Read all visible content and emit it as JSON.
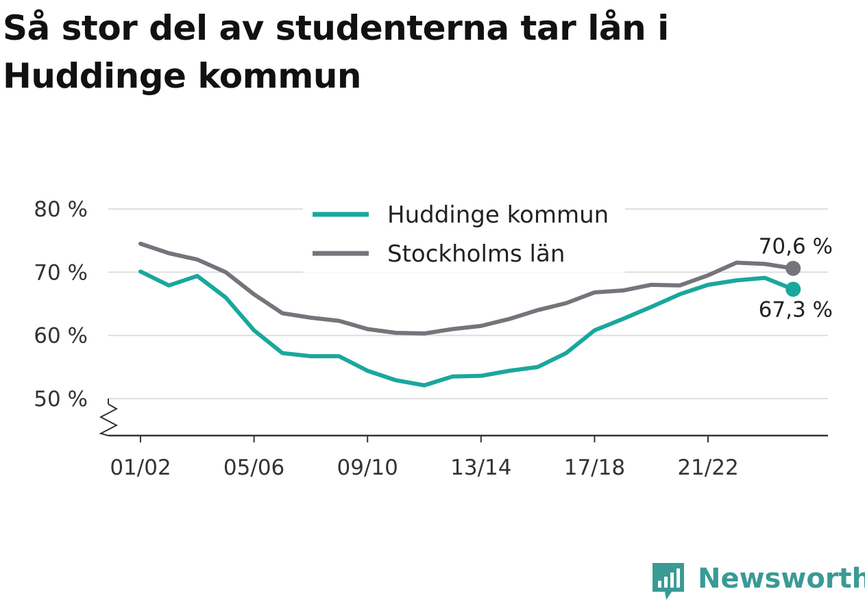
{
  "title": "Så stor del av studenterna tar lån i Huddinge kommun",
  "brand": {
    "name": "Newsworthy",
    "icon": "newsworthy-logo-icon",
    "color": "#3a9a95"
  },
  "chart_data": {
    "type": "line",
    "title": "Så stor del av studenterna tar lån i Huddinge kommun",
    "xlabel": "",
    "ylabel": "",
    "ylim": [
      44.3,
      80
    ],
    "yticks": [
      50,
      60,
      70,
      80
    ],
    "ytick_labels": [
      "50 %",
      "60 %",
      "70 %",
      "80 %"
    ],
    "x": [
      "01/02",
      "02/03",
      "03/04",
      "04/05",
      "05/06",
      "06/07",
      "07/08",
      "08/09",
      "09/10",
      "10/11",
      "11/12",
      "12/13",
      "13/14",
      "14/15",
      "15/16",
      "16/17",
      "17/18",
      "18/19",
      "19/20",
      "20/21",
      "21/22",
      "22/23",
      "23/24",
      "24/25"
    ],
    "xticks": [
      "01/02",
      "05/06",
      "09/10",
      "13/14",
      "17/18",
      "21/22"
    ],
    "grid": true,
    "axis_break": true,
    "legend_position": "top-center",
    "series": [
      {
        "name": "Huddinge kommun",
        "color": "#1aa79d",
        "values": [
          70.1,
          67.9,
          69.4,
          66.0,
          60.8,
          57.2,
          56.7,
          56.7,
          54.4,
          52.9,
          52.1,
          53.5,
          53.6,
          54.4,
          55.0,
          57.2,
          60.8,
          62.6,
          64.5,
          66.5,
          68.0,
          68.7,
          69.1,
          67.3
        ],
        "end_label": "67,3 %"
      },
      {
        "name": "Stockholms län",
        "color": "#75747b",
        "values": [
          74.5,
          73.0,
          72.0,
          70.0,
          66.5,
          63.5,
          62.8,
          62.3,
          61.0,
          60.4,
          60.3,
          61.0,
          61.5,
          62.6,
          64.0,
          65.1,
          66.8,
          67.1,
          68.0,
          67.9,
          69.5,
          71.5,
          71.3,
          70.6
        ],
        "end_label": "70,6 %"
      }
    ]
  }
}
